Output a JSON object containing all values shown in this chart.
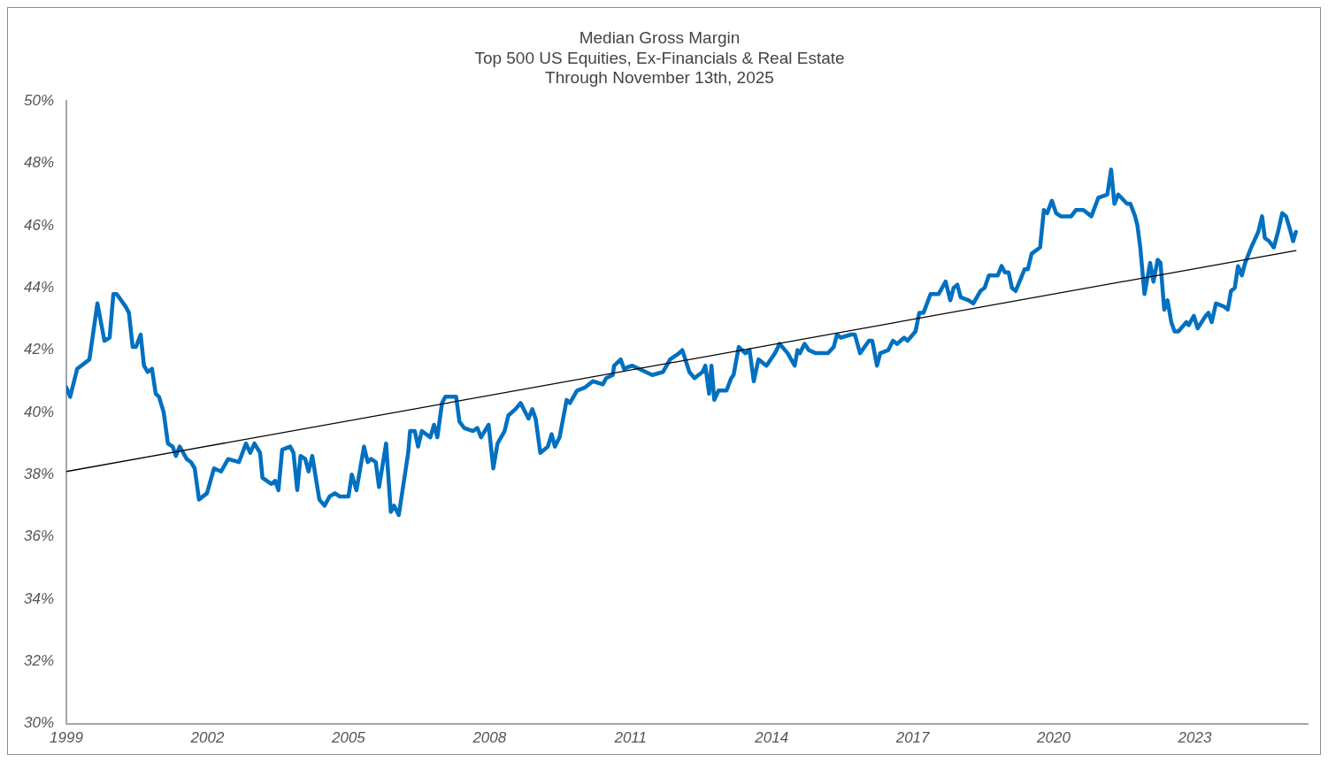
{
  "chart_data": {
    "type": "line",
    "title": "Median Gross Margin",
    "subtitle": "Top 500 US Equities, Ex-Financials & Real Estate\nThrough November 13th, 2025",
    "xlim": [
      1999,
      2025.4
    ],
    "xticks": [
      1999,
      2002,
      2005,
      2008,
      2011,
      2014,
      2017,
      2020,
      2023
    ],
    "ylim": [
      30,
      50
    ],
    "yticks": [
      {
        "value": 30,
        "label": "30%"
      },
      {
        "value": 32,
        "label": "32%"
      },
      {
        "value": 34,
        "label": "34%"
      },
      {
        "value": 36,
        "label": "36%"
      },
      {
        "value": 38,
        "label": "38%"
      },
      {
        "value": 40,
        "label": "40%"
      },
      {
        "value": 42,
        "label": "42%"
      },
      {
        "value": 44,
        "label": "44%"
      },
      {
        "value": 46,
        "label": "46%"
      },
      {
        "value": 48,
        "label": "48%"
      },
      {
        "value": 50,
        "label": "50%"
      }
    ],
    "grid": false,
    "legend": false,
    "marker": "none",
    "line_style": "solid",
    "series": [
      {
        "color": "#0070c0",
        "x": [
          1999.0,
          1999.08,
          1999.23,
          1999.49,
          1999.66,
          1999.81,
          1999.92,
          2000.0,
          2000.07,
          2000.26,
          2000.33,
          2000.41,
          2000.48,
          2000.58,
          2000.65,
          2000.73,
          2000.82,
          2000.9,
          2000.97,
          2001.07,
          2001.16,
          2001.26,
          2001.33,
          2001.41,
          2001.56,
          2001.65,
          2001.73,
          2001.82,
          2001.99,
          2002.14,
          2002.29,
          2002.44,
          2002.67,
          2002.82,
          2002.91,
          2003.0,
          2003.12,
          2003.17,
          2003.36,
          2003.44,
          2003.51,
          2003.59,
          2003.76,
          2003.83,
          2003.91,
          2003.98,
          2004.08,
          2004.15,
          2004.23,
          2004.38,
          2004.49,
          2004.6,
          2004.71,
          2004.81,
          2005.0,
          2005.07,
          2005.17,
          2005.33,
          2005.41,
          2005.48,
          2005.58,
          2005.65,
          2005.8,
          2005.9,
          2005.97,
          2006.07,
          2006.27,
          2006.31,
          2006.41,
          2006.48,
          2006.56,
          2006.74,
          2006.82,
          2006.89,
          2006.99,
          2007.06,
          2007.29,
          2007.36,
          2007.46,
          2007.65,
          2007.74,
          2007.82,
          2007.98,
          2008.08,
          2008.17,
          2008.32,
          2008.4,
          2008.55,
          2008.66,
          2008.83,
          2008.91,
          2008.98,
          2009.08,
          2009.24,
          2009.32,
          2009.39,
          2009.49,
          2009.64,
          2009.71,
          2009.86,
          2010.03,
          2010.2,
          2010.41,
          2010.48,
          2010.62,
          2010.65,
          2010.79,
          2010.86,
          2011.03,
          2011.18,
          2011.46,
          2011.69,
          2011.84,
          2012.03,
          2012.1,
          2012.25,
          2012.36,
          2012.53,
          2012.59,
          2012.67,
          2012.72,
          2012.78,
          2012.87,
          2013.04,
          2013.14,
          2013.19,
          2013.3,
          2013.44,
          2013.53,
          2013.62,
          2013.72,
          2013.89,
          2014.07,
          2014.17,
          2014.34,
          2014.49,
          2014.55,
          2014.6,
          2014.7,
          2014.79,
          2014.94,
          2015.2,
          2015.32,
          2015.39,
          2015.47,
          2015.69,
          2015.77,
          2015.88,
          2016.07,
          2016.14,
          2016.24,
          2016.31,
          2016.48,
          2016.58,
          2016.67,
          2016.82,
          2016.89,
          2017.06,
          2017.14,
          2017.23,
          2017.38,
          2017.55,
          2017.7,
          2017.8,
          2017.87,
          2017.95,
          2018.02,
          2018.19,
          2018.29,
          2018.44,
          2018.53,
          2018.62,
          2018.81,
          2018.89,
          2018.96,
          2019.04,
          2019.11,
          2019.19,
          2019.38,
          2019.45,
          2019.53,
          2019.71,
          2019.79,
          2019.86,
          2019.96,
          2020.05,
          2020.15,
          2020.37,
          2020.47,
          2020.63,
          2020.8,
          2020.95,
          2021.14,
          2021.22,
          2021.29,
          2021.37,
          2021.56,
          2021.63,
          2021.73,
          2021.78,
          2021.84,
          2021.93,
          2022.05,
          2022.12,
          2022.21,
          2022.27,
          2022.35,
          2022.42,
          2022.5,
          2022.57,
          2022.65,
          2022.82,
          2022.87,
          2022.98,
          2023.06,
          2023.23,
          2023.29,
          2023.36,
          2023.45,
          2023.62,
          2023.7,
          2023.77,
          2023.85,
          2023.92,
          2024.0,
          2024.07,
          2024.2,
          2024.35,
          2024.43,
          2024.49,
          2024.58,
          2024.68,
          2024.77,
          2024.86,
          2024.94,
          2025.02,
          2025.09,
          2025.15
        ],
        "values": [
          40.8,
          40.5,
          41.4,
          41.7,
          43.5,
          42.3,
          42.4,
          43.8,
          43.8,
          43.4,
          43.2,
          42.1,
          42.1,
          42.5,
          41.5,
          41.3,
          41.4,
          40.6,
          40.5,
          40.0,
          39.0,
          38.9,
          38.6,
          38.9,
          38.5,
          38.4,
          38.2,
          37.2,
          37.4,
          38.2,
          38.1,
          38.5,
          38.4,
          39.0,
          38.7,
          39.0,
          38.7,
          37.9,
          37.7,
          37.8,
          37.5,
          38.8,
          38.9,
          38.7,
          37.5,
          38.6,
          38.5,
          38.1,
          38.6,
          37.2,
          37.0,
          37.3,
          37.4,
          37.3,
          37.3,
          38.0,
          37.5,
          38.9,
          38.4,
          38.5,
          38.4,
          37.6,
          39.0,
          36.8,
          37.0,
          36.7,
          38.7,
          39.4,
          39.4,
          38.9,
          39.4,
          39.2,
          39.6,
          39.2,
          40.3,
          40.5,
          40.5,
          39.7,
          39.5,
          39.4,
          39.5,
          39.2,
          39.6,
          38.2,
          39.0,
          39.4,
          39.9,
          40.1,
          40.3,
          39.8,
          40.1,
          39.8,
          38.7,
          38.9,
          39.3,
          38.9,
          39.2,
          40.4,
          40.3,
          40.7,
          40.8,
          41.0,
          40.9,
          41.1,
          41.2,
          41.5,
          41.7,
          41.4,
          41.5,
          41.4,
          41.2,
          41.3,
          41.7,
          41.9,
          42.0,
          41.3,
          41.1,
          41.3,
          41.5,
          40.6,
          41.5,
          40.4,
          40.7,
          40.7,
          41.1,
          41.2,
          42.1,
          41.9,
          42.0,
          41.0,
          41.7,
          41.5,
          41.9,
          42.2,
          41.9,
          41.5,
          42.0,
          41.9,
          42.2,
          42.0,
          41.9,
          41.9,
          42.1,
          42.5,
          42.4,
          42.5,
          42.5,
          41.9,
          42.3,
          42.3,
          41.5,
          41.9,
          42.0,
          42.3,
          42.2,
          42.4,
          42.3,
          42.6,
          43.2,
          43.2,
          43.8,
          43.8,
          44.2,
          43.6,
          44.0,
          44.1,
          43.7,
          43.6,
          43.5,
          43.9,
          44.0,
          44.4,
          44.4,
          44.7,
          44.5,
          44.5,
          44.0,
          43.9,
          44.6,
          44.6,
          45.1,
          45.3,
          46.5,
          46.4,
          46.8,
          46.4,
          46.3,
          46.3,
          46.5,
          46.5,
          46.3,
          46.9,
          47.0,
          47.8,
          46.7,
          47.0,
          46.7,
          46.7,
          46.3,
          46.0,
          45.3,
          43.8,
          44.8,
          44.2,
          44.9,
          44.8,
          43.3,
          43.6,
          42.9,
          42.6,
          42.6,
          42.9,
          42.8,
          43.1,
          42.7,
          43.1,
          43.2,
          42.9,
          43.5,
          43.4,
          43.3,
          43.9,
          44.0,
          44.7,
          44.4,
          44.8,
          45.3,
          45.8,
          46.3,
          45.6,
          45.5,
          45.3,
          45.8,
          46.4,
          46.3,
          45.9,
          45.5,
          45.8
        ]
      },
      {
        "color": "#000000",
        "x": [
          1999,
          2025.15
        ],
        "values": [
          38.1,
          45.2
        ]
      }
    ]
  }
}
